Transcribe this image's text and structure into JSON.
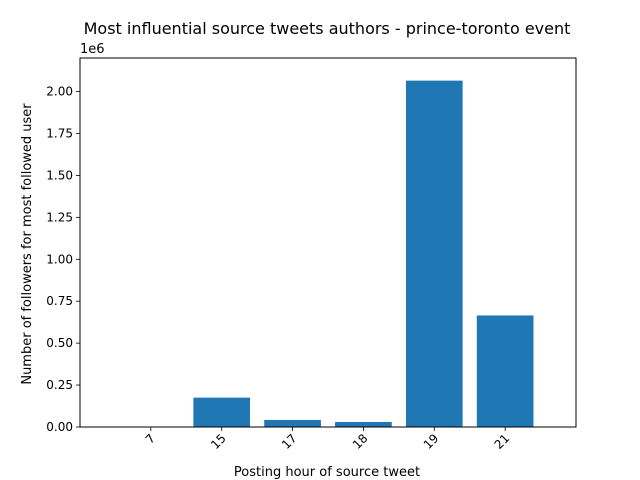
{
  "chart_data": {
    "type": "bar",
    "title": "Most influential source tweets authors - prince-toronto event",
    "xlabel": "Posting hour of source tweet",
    "ylabel": "Number of followers for most followed user",
    "y_offset_label": "1e6",
    "y_scale": 1000000,
    "categories": [
      "7",
      "15",
      "17",
      "18",
      "19",
      "21"
    ],
    "values": [
      0,
      175000,
      42000,
      30000,
      2065000,
      665000
    ],
    "ylim": [
      0,
      2200000
    ],
    "yticks": [
      0,
      250000,
      500000,
      750000,
      1000000,
      1250000,
      1500000,
      1750000,
      2000000
    ],
    "ytick_labels": [
      "0.00",
      "0.25",
      "0.50",
      "0.75",
      "1.00",
      "1.25",
      "1.50",
      "1.75",
      "2.00"
    ],
    "bar_color": "#1f77b4",
    "grid": false,
    "legend": "none"
  }
}
